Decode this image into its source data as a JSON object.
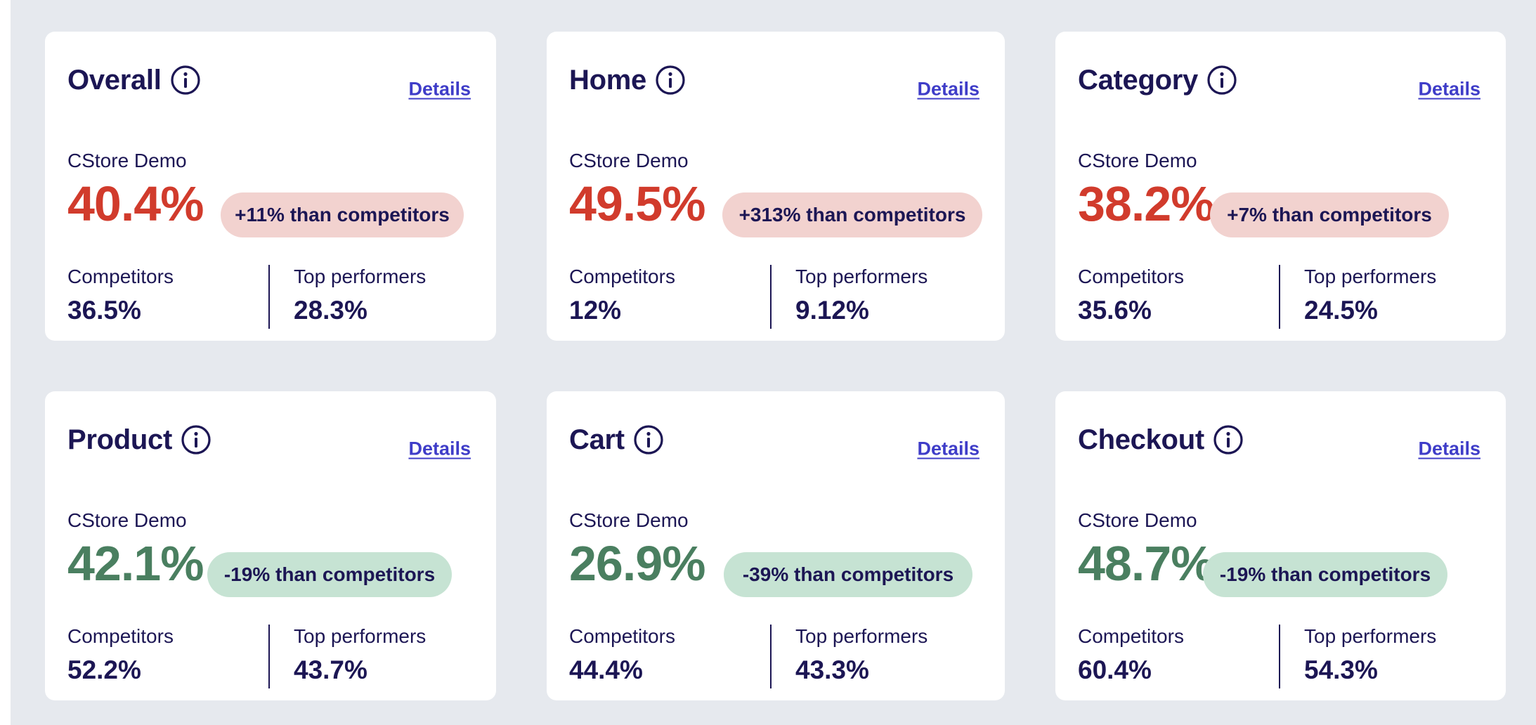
{
  "colors": {
    "background": "#e6e9ee",
    "card": "#ffffff",
    "text": "#1c1654",
    "link": "#3f3dc8",
    "negative_value": "#d13b2c",
    "negative_pill": "#f2d2cf",
    "positive_value": "#4a7f60",
    "positive_pill": "#c6e3d3"
  },
  "icons": {
    "info": "info-circle-icon"
  },
  "labels": {
    "details": "Details",
    "store_name": "CStore Demo",
    "competitors": "Competitors",
    "top_performers": "Top performers"
  },
  "cards": [
    {
      "title": "Overall",
      "value": "40.4%",
      "comparison": "+11% than competitors",
      "status": "negative",
      "competitors": "36.5%",
      "top_performers": "28.3%"
    },
    {
      "title": "Home",
      "value": "49.5%",
      "comparison": "+313% than competitors",
      "status": "negative",
      "competitors": "12%",
      "top_performers": "9.12%"
    },
    {
      "title": "Category",
      "value": "38.2%",
      "comparison": "+7% than competitors",
      "status": "negative",
      "competitors": "35.6%",
      "top_performers": "24.5%"
    },
    {
      "title": "Product",
      "value": "42.1%",
      "comparison": "-19% than competitors",
      "status": "positive",
      "competitors": "52.2%",
      "top_performers": "43.7%"
    },
    {
      "title": "Cart",
      "value": "26.9%",
      "comparison": "-39% than competitors",
      "status": "positive",
      "competitors": "44.4%",
      "top_performers": "43.3%"
    },
    {
      "title": "Checkout",
      "value": "48.7%",
      "comparison": "-19% than competitors",
      "status": "positive",
      "competitors": "60.4%",
      "top_performers": "54.3%"
    }
  ]
}
